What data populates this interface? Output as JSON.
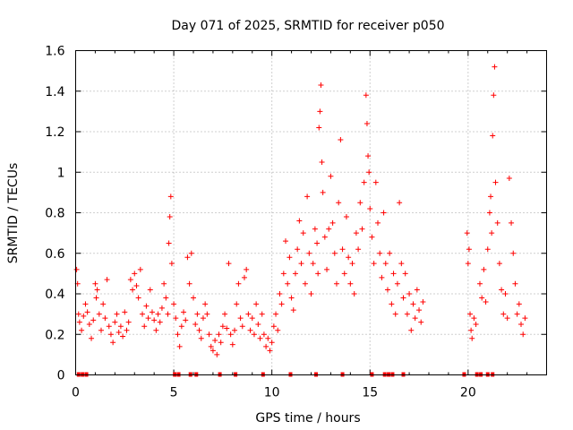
{
  "chart_data": {
    "type": "scatter",
    "title": "Day 071 of 2025, SRMTID for receiver p050",
    "xlabel": "GPS time / hours",
    "ylabel": "SRMTID / TECUs",
    "xlim": [
      0,
      24
    ],
    "ylim": [
      0,
      1.6
    ],
    "x_ticks": [
      0,
      5,
      10,
      15,
      20
    ],
    "x_tick_labels": [
      "0",
      "5",
      "10",
      "15",
      "20"
    ],
    "y_ticks": [
      0,
      0.2,
      0.4,
      0.6,
      0.8,
      1.0,
      1.2,
      1.4,
      1.6
    ],
    "y_tick_labels": [
      "0",
      "0.2",
      "0.4",
      "0.6",
      "0.8",
      "1",
      "1.2",
      "1.4",
      "1.6"
    ],
    "grid": true,
    "marker": "plus",
    "color": "#ff0000",
    "series": [
      {
        "name": "SRMTID",
        "points": [
          [
            0.05,
            0.52
          ],
          [
            0.1,
            0.45
          ],
          [
            0.15,
            0.3
          ],
          [
            0.2,
            0.26
          ],
          [
            0.3,
            0.22
          ],
          [
            0.4,
            0.29
          ],
          [
            0.5,
            0.35
          ],
          [
            0.6,
            0.31
          ],
          [
            0.7,
            0.25
          ],
          [
            0.8,
            0.18
          ],
          [
            0.9,
            0.27
          ],
          [
            1.0,
            0.45
          ],
          [
            1.05,
            0.38
          ],
          [
            1.1,
            0.42
          ],
          [
            1.2,
            0.3
          ],
          [
            1.3,
            0.22
          ],
          [
            1.4,
            0.35
          ],
          [
            1.5,
            0.28
          ],
          [
            1.6,
            0.47
          ],
          [
            1.7,
            0.24
          ],
          [
            1.8,
            0.2
          ],
          [
            1.9,
            0.16
          ],
          [
            2.0,
            0.26
          ],
          [
            2.1,
            0.3
          ],
          [
            2.2,
            0.21
          ],
          [
            2.3,
            0.24
          ],
          [
            2.4,
            0.19
          ],
          [
            2.5,
            0.31
          ],
          [
            2.6,
            0.22
          ],
          [
            2.7,
            0.26
          ],
          [
            2.8,
            0.47
          ],
          [
            2.9,
            0.42
          ],
          [
            3.0,
            0.5
          ],
          [
            3.1,
            0.44
          ],
          [
            3.2,
            0.38
          ],
          [
            3.3,
            0.52
          ],
          [
            3.4,
            0.3
          ],
          [
            3.5,
            0.24
          ],
          [
            3.6,
            0.34
          ],
          [
            3.7,
            0.28
          ],
          [
            3.8,
            0.42
          ],
          [
            3.9,
            0.31
          ],
          [
            4.0,
            0.27
          ],
          [
            4.1,
            0.22
          ],
          [
            4.2,
            0.3
          ],
          [
            4.3,
            0.26
          ],
          [
            4.4,
            0.33
          ],
          [
            4.5,
            0.45
          ],
          [
            4.6,
            0.38
          ],
          [
            4.7,
            0.3
          ],
          [
            4.75,
            0.65
          ],
          [
            4.8,
            0.78
          ],
          [
            4.85,
            0.88
          ],
          [
            4.9,
            0.55
          ],
          [
            5.0,
            0.35
          ],
          [
            5.1,
            0.28
          ],
          [
            5.2,
            0.2
          ],
          [
            5.3,
            0.14
          ],
          [
            5.4,
            0.24
          ],
          [
            5.5,
            0.31
          ],
          [
            5.6,
            0.27
          ],
          [
            5.7,
            0.58
          ],
          [
            5.8,
            0.45
          ],
          [
            5.9,
            0.6
          ],
          [
            6.0,
            0.38
          ],
          [
            6.1,
            0.25
          ],
          [
            6.2,
            0.3
          ],
          [
            6.3,
            0.22
          ],
          [
            6.4,
            0.18
          ],
          [
            6.5,
            0.28
          ],
          [
            6.6,
            0.35
          ],
          [
            6.7,
            0.3
          ],
          [
            6.8,
            0.2
          ],
          [
            6.9,
            0.14
          ],
          [
            7.0,
            0.12
          ],
          [
            7.1,
            0.17
          ],
          [
            7.2,
            0.1
          ],
          [
            7.3,
            0.2
          ],
          [
            7.4,
            0.16
          ],
          [
            7.5,
            0.24
          ],
          [
            7.6,
            0.3
          ],
          [
            7.7,
            0.23
          ],
          [
            7.8,
            0.55
          ],
          [
            7.9,
            0.2
          ],
          [
            8.0,
            0.15
          ],
          [
            8.1,
            0.22
          ],
          [
            8.2,
            0.35
          ],
          [
            8.3,
            0.45
          ],
          [
            8.4,
            0.28
          ],
          [
            8.5,
            0.24
          ],
          [
            8.6,
            0.48
          ],
          [
            8.7,
            0.52
          ],
          [
            8.8,
            0.3
          ],
          [
            8.9,
            0.22
          ],
          [
            9.0,
            0.28
          ],
          [
            9.1,
            0.2
          ],
          [
            9.2,
            0.35
          ],
          [
            9.3,
            0.25
          ],
          [
            9.4,
            0.18
          ],
          [
            9.5,
            0.3
          ],
          [
            9.6,
            0.2
          ],
          [
            9.7,
            0.14
          ],
          [
            9.8,
            0.18
          ],
          [
            9.9,
            0.12
          ],
          [
            10.0,
            0.16
          ],
          [
            10.1,
            0.24
          ],
          [
            10.2,
            0.3
          ],
          [
            10.3,
            0.22
          ],
          [
            10.4,
            0.4
          ],
          [
            10.5,
            0.35
          ],
          [
            10.6,
            0.5
          ],
          [
            10.7,
            0.66
          ],
          [
            10.8,
            0.45
          ],
          [
            10.9,
            0.58
          ],
          [
            11.0,
            0.38
          ],
          [
            11.1,
            0.32
          ],
          [
            11.2,
            0.5
          ],
          [
            11.3,
            0.62
          ],
          [
            11.4,
            0.76
          ],
          [
            11.5,
            0.55
          ],
          [
            11.6,
            0.7
          ],
          [
            11.7,
            0.45
          ],
          [
            11.8,
            0.88
          ],
          [
            11.9,
            0.6
          ],
          [
            12.0,
            0.4
          ],
          [
            12.1,
            0.55
          ],
          [
            12.2,
            0.72
          ],
          [
            12.3,
            0.65
          ],
          [
            12.35,
            0.5
          ],
          [
            12.4,
            1.22
          ],
          [
            12.45,
            1.3
          ],
          [
            12.5,
            1.43
          ],
          [
            12.55,
            1.05
          ],
          [
            12.6,
            0.9
          ],
          [
            12.7,
            0.68
          ],
          [
            12.8,
            0.52
          ],
          [
            12.9,
            0.72
          ],
          [
            13.0,
            0.98
          ],
          [
            13.1,
            0.75
          ],
          [
            13.2,
            0.6
          ],
          [
            13.3,
            0.45
          ],
          [
            13.4,
            0.85
          ],
          [
            13.5,
            1.16
          ],
          [
            13.6,
            0.62
          ],
          [
            13.7,
            0.5
          ],
          [
            13.8,
            0.78
          ],
          [
            13.9,
            0.58
          ],
          [
            14.0,
            0.45
          ],
          [
            14.1,
            0.55
          ],
          [
            14.2,
            0.4
          ],
          [
            14.3,
            0.7
          ],
          [
            14.4,
            0.62
          ],
          [
            14.5,
            0.85
          ],
          [
            14.6,
            0.72
          ],
          [
            14.7,
            0.95
          ],
          [
            14.8,
            1.38
          ],
          [
            14.85,
            1.24
          ],
          [
            14.9,
            1.08
          ],
          [
            14.95,
            1.0
          ],
          [
            15.0,
            0.82
          ],
          [
            15.1,
            0.68
          ],
          [
            15.2,
            0.55
          ],
          [
            15.3,
            0.95
          ],
          [
            15.4,
            0.75
          ],
          [
            15.5,
            0.6
          ],
          [
            15.6,
            0.48
          ],
          [
            15.7,
            0.8
          ],
          [
            15.8,
            0.55
          ],
          [
            15.9,
            0.42
          ],
          [
            16.0,
            0.6
          ],
          [
            16.1,
            0.35
          ],
          [
            16.2,
            0.5
          ],
          [
            16.3,
            0.3
          ],
          [
            16.4,
            0.45
          ],
          [
            16.5,
            0.85
          ],
          [
            16.6,
            0.55
          ],
          [
            16.7,
            0.38
          ],
          [
            16.8,
            0.5
          ],
          [
            16.9,
            0.3
          ],
          [
            17.0,
            0.4
          ],
          [
            17.1,
            0.22
          ],
          [
            17.2,
            0.35
          ],
          [
            17.3,
            0.28
          ],
          [
            17.4,
            0.42
          ],
          [
            17.5,
            0.32
          ],
          [
            17.6,
            0.26
          ],
          [
            17.7,
            0.36
          ],
          [
            19.95,
            0.7
          ],
          [
            20.0,
            0.55
          ],
          [
            20.05,
            0.62
          ],
          [
            20.1,
            0.3
          ],
          [
            20.15,
            0.22
          ],
          [
            20.2,
            0.18
          ],
          [
            20.3,
            0.28
          ],
          [
            20.4,
            0.25
          ],
          [
            20.6,
            0.45
          ],
          [
            20.7,
            0.38
          ],
          [
            20.8,
            0.52
          ],
          [
            20.9,
            0.36
          ],
          [
            21.0,
            0.62
          ],
          [
            21.1,
            0.8
          ],
          [
            21.15,
            0.88
          ],
          [
            21.2,
            0.7
          ],
          [
            21.25,
            1.18
          ],
          [
            21.3,
            1.38
          ],
          [
            21.35,
            1.52
          ],
          [
            21.4,
            0.95
          ],
          [
            21.5,
            0.75
          ],
          [
            21.6,
            0.55
          ],
          [
            21.7,
            0.42
          ],
          [
            21.8,
            0.3
          ],
          [
            21.9,
            0.4
          ],
          [
            22.0,
            0.28
          ],
          [
            22.1,
            0.97
          ],
          [
            22.2,
            0.75
          ],
          [
            22.3,
            0.6
          ],
          [
            22.4,
            0.45
          ],
          [
            22.5,
            0.3
          ],
          [
            22.6,
            0.35
          ],
          [
            22.7,
            0.25
          ],
          [
            22.8,
            0.2
          ],
          [
            22.9,
            0.28
          ]
        ]
      }
    ],
    "zero_markers_x": [
      0.15,
      0.35,
      0.55,
      5.05,
      5.25,
      5.85,
      6.15,
      7.35,
      8.15,
      9.55,
      10.95,
      12.25,
      13.6,
      15.1,
      15.75,
      15.95,
      16.15,
      16.7,
      19.8,
      20.45,
      20.65,
      21.0,
      21.25
    ]
  }
}
